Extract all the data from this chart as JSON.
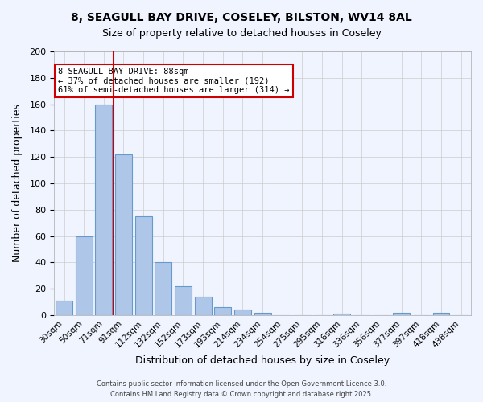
{
  "title_line1": "8, SEAGULL BAY DRIVE, COSELEY, BILSTON, WV14 8AL",
  "title_line2": "Size of property relative to detached houses in Coseley",
  "xlabel": "Distribution of detached houses by size in Coseley",
  "ylabel": "Number of detached properties",
  "bar_labels": [
    "30sqm",
    "50sqm",
    "71sqm",
    "91sqm",
    "112sqm",
    "132sqm",
    "152sqm",
    "173sqm",
    "193sqm",
    "214sqm",
    "234sqm",
    "254sqm",
    "275sqm",
    "295sqm",
    "316sqm",
    "336sqm",
    "356sqm",
    "377sqm",
    "397sqm",
    "418sqm",
    "438sqm"
  ],
  "bar_values": [
    11,
    60,
    160,
    122,
    75,
    40,
    22,
    14,
    6,
    4,
    2,
    0,
    0,
    0,
    1,
    0,
    0,
    2,
    0,
    2,
    0
  ],
  "bar_color": "#aec6e8",
  "bar_edge_color": "#6699cc",
  "background_color": "#f0f4ff",
  "grid_color": "#cccccc",
  "vline_x": 3,
  "vline_color": "#cc0000",
  "annotation_text": "8 SEAGULL BAY DRIVE: 88sqm\n← 37% of detached houses are smaller (192)\n61% of semi-detached houses are larger (314) →",
  "annotation_box_color": "#ffffff",
  "annotation_box_edge_color": "#cc0000",
  "ylim": [
    0,
    200
  ],
  "yticks": [
    0,
    20,
    40,
    60,
    80,
    100,
    120,
    140,
    160,
    180,
    200
  ],
  "footer_line1": "Contains HM Land Registry data © Crown copyright and database right 2025.",
  "footer_line2": "Contains public sector information licensed under the Open Government Licence 3.0."
}
